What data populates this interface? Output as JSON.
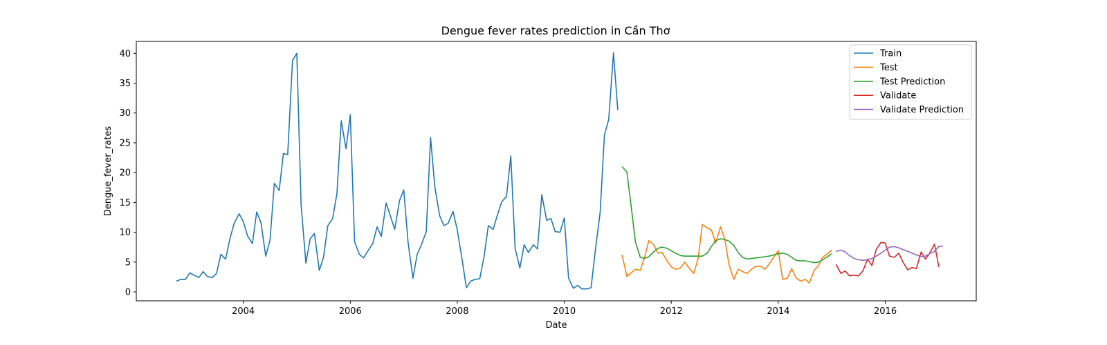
{
  "chart_data": {
    "type": "line",
    "title": "Dengue fever rates prediction in Cần Thơ",
    "xlabel": "Date",
    "ylabel": "Dengue_fever_rates",
    "xlim": [
      2002.0,
      2017.7
    ],
    "ylim": [
      -1.5,
      42.0
    ],
    "x_ticks": [
      2004,
      2006,
      2008,
      2010,
      2012,
      2014,
      2016
    ],
    "x_tick_labels": [
      "2004",
      "2006",
      "2008",
      "2010",
      "2012",
      "2014",
      "2016"
    ],
    "y_ticks": [
      0,
      5,
      10,
      15,
      20,
      25,
      30,
      35,
      40
    ],
    "y_tick_labels": [
      "0",
      "5",
      "10",
      "15",
      "20",
      "25",
      "30",
      "35",
      "40"
    ],
    "grid": false,
    "legend_position": "top-right",
    "series": [
      {
        "name": "Train",
        "color": "#1f77b4",
        "x": [
          2002.75,
          2002.83,
          2002.92,
          2003.0,
          2003.08,
          2003.17,
          2003.25,
          2003.33,
          2003.42,
          2003.5,
          2003.58,
          2003.67,
          2003.75,
          2003.83,
          2003.92,
          2004.0,
          2004.08,
          2004.17,
          2004.25,
          2004.33,
          2004.42,
          2004.5,
          2004.58,
          2004.67,
          2004.75,
          2004.83,
          2004.92,
          2005.0,
          2005.08,
          2005.17,
          2005.25,
          2005.33,
          2005.42,
          2005.5,
          2005.58,
          2005.67,
          2005.75,
          2005.83,
          2005.92,
          2006.0,
          2006.08,
          2006.17,
          2006.25,
          2006.33,
          2006.42,
          2006.5,
          2006.58,
          2006.67,
          2006.75,
          2006.83,
          2006.92,
          2007.0,
          2007.08,
          2007.17,
          2007.25,
          2007.33,
          2007.42,
          2007.5,
          2007.58,
          2007.67,
          2007.75,
          2007.83,
          2007.92,
          2008.0,
          2008.08,
          2008.17,
          2008.25,
          2008.33,
          2008.42,
          2008.5,
          2008.58,
          2008.67,
          2008.75,
          2008.83,
          2008.92,
          2009.0,
          2009.08,
          2009.17,
          2009.25,
          2009.33,
          2009.42,
          2009.5,
          2009.58,
          2009.67,
          2009.75,
          2009.83,
          2009.92,
          2010.0,
          2010.08,
          2010.17,
          2010.25,
          2010.33,
          2010.42,
          2010.5,
          2010.58,
          2010.67,
          2010.75,
          2010.83,
          2010.92,
          2011.0
        ],
        "values": [
          1.8,
          2.1,
          2.1,
          3.2,
          2.8,
          2.4,
          3.4,
          2.6,
          2.4,
          3.1,
          6.3,
          5.5,
          8.9,
          11.5,
          13.1,
          11.8,
          9.4,
          8.1,
          13.4,
          11.6,
          6.0,
          8.7,
          18.2,
          17.0,
          23.2,
          23.0,
          38.8,
          40.0,
          14.6,
          4.8,
          8.9,
          9.8,
          3.6,
          5.8,
          11.1,
          12.3,
          16.5,
          28.7,
          24.0,
          29.7,
          8.4,
          6.3,
          5.7,
          6.9,
          8.1,
          10.9,
          9.3,
          14.9,
          12.7,
          10.5,
          15.3,
          17.1,
          8.3,
          2.3,
          6.3,
          7.9,
          10.1,
          25.9,
          17.6,
          12.8,
          11.1,
          11.5,
          13.5,
          10.4,
          6.0,
          0.7,
          1.8,
          2.1,
          2.2,
          5.9,
          11.1,
          10.5,
          12.9,
          15.1,
          16.0,
          22.8,
          7.3,
          4.0,
          7.9,
          6.6,
          7.9,
          7.2,
          16.3,
          12.0,
          12.3,
          10.1,
          10.0,
          12.4,
          2.3,
          0.6,
          1.1,
          0.5,
          0.5,
          0.7,
          6.9,
          13.3,
          26.3,
          28.9,
          40.1,
          30.5
        ]
      },
      {
        "name": "Test",
        "color": "#ff7f0e",
        "x": [
          2011.08,
          2011.17,
          2011.25,
          2011.33,
          2011.42,
          2011.5,
          2011.58,
          2011.67,
          2011.75,
          2011.83,
          2011.92,
          2012.0,
          2012.08,
          2012.17,
          2012.25,
          2012.33,
          2012.42,
          2012.5,
          2012.58,
          2012.67,
          2012.75,
          2012.83,
          2012.92,
          2013.0,
          2013.08,
          2013.17,
          2013.25,
          2013.33,
          2013.42,
          2013.5,
          2013.58,
          2013.67,
          2013.75,
          2013.83,
          2013.92,
          2014.0,
          2014.08,
          2014.17,
          2014.25,
          2014.33,
          2014.42,
          2014.5,
          2014.58,
          2014.67,
          2014.75,
          2014.83,
          2014.92,
          2015.0
        ],
        "values": [
          6.2,
          2.6,
          3.2,
          3.8,
          3.6,
          5.8,
          8.6,
          7.9,
          6.5,
          6.6,
          5.2,
          4.2,
          3.8,
          4.0,
          5.0,
          4.0,
          3.1,
          5.5,
          11.3,
          10.7,
          10.4,
          8.2,
          10.9,
          8.8,
          4.5,
          2.1,
          3.8,
          3.4,
          3.1,
          3.8,
          4.3,
          4.3,
          3.8,
          4.7,
          5.9,
          6.9,
          2.1,
          2.3,
          3.9,
          2.4,
          1.8,
          2.1,
          1.5,
          3.6,
          4.4,
          5.8,
          6.4,
          7.0
        ]
      },
      {
        "name": "Test Prediction",
        "color": "#2ca02c",
        "x": [
          2011.08,
          2011.17,
          2011.25,
          2011.33,
          2011.42,
          2011.5,
          2011.58,
          2011.67,
          2011.75,
          2011.83,
          2011.92,
          2012.0,
          2012.08,
          2012.17,
          2012.25,
          2012.33,
          2012.42,
          2012.5,
          2012.58,
          2012.67,
          2012.75,
          2012.83,
          2012.92,
          2013.0,
          2013.08,
          2013.17,
          2013.25,
          2013.33,
          2013.42,
          2013.5,
          2013.58,
          2013.67,
          2013.75,
          2013.83,
          2013.92,
          2014.0,
          2014.08,
          2014.17,
          2014.25,
          2014.33,
          2014.42,
          2014.5,
          2014.58,
          2014.67,
          2014.75,
          2014.83,
          2014.92,
          2015.0
        ],
        "values": [
          21.0,
          20.1,
          14.3,
          8.4,
          5.8,
          5.6,
          5.9,
          6.7,
          7.3,
          7.5,
          7.3,
          6.9,
          6.5,
          6.1,
          6.0,
          6.0,
          6.0,
          6.0,
          6.0,
          6.5,
          7.6,
          8.6,
          8.9,
          8.8,
          8.5,
          7.8,
          6.6,
          5.8,
          5.5,
          5.6,
          5.7,
          5.8,
          5.9,
          6.0,
          6.2,
          6.4,
          6.5,
          6.3,
          5.8,
          5.3,
          5.2,
          5.2,
          5.1,
          4.9,
          5.0,
          5.4,
          5.9,
          6.4
        ]
      },
      {
        "name": "Validate",
        "color": "#d62728",
        "x": [
          2015.08,
          2015.17,
          2015.25,
          2015.33,
          2015.42,
          2015.5,
          2015.58,
          2015.67,
          2015.75,
          2015.83,
          2015.92,
          2016.0,
          2016.08,
          2016.17,
          2016.25,
          2016.33,
          2016.42,
          2016.5,
          2016.58,
          2016.67,
          2016.75,
          2016.83,
          2016.92,
          2017.0
        ],
        "values": [
          4.6,
          3.1,
          3.5,
          2.7,
          2.8,
          2.7,
          3.5,
          5.5,
          4.4,
          7.1,
          8.3,
          8.2,
          6.0,
          5.8,
          6.5,
          5.0,
          3.7,
          4.1,
          3.9,
          6.7,
          5.5,
          6.5,
          8.0,
          4.2
        ]
      },
      {
        "name": "Validate Prediction",
        "color": "#9467bd",
        "x": [
          2015.08,
          2015.17,
          2015.25,
          2015.33,
          2015.42,
          2015.5,
          2015.58,
          2015.67,
          2015.75,
          2015.83,
          2015.92,
          2016.0,
          2016.08,
          2016.17,
          2016.25,
          2016.33,
          2016.42,
          2016.5,
          2016.58,
          2016.67,
          2016.75,
          2016.83,
          2016.92,
          2017.0,
          2017.08
        ],
        "values": [
          6.8,
          7.0,
          6.7,
          6.1,
          5.6,
          5.4,
          5.3,
          5.4,
          5.6,
          6.0,
          6.5,
          7.0,
          7.5,
          7.6,
          7.4,
          7.1,
          6.8,
          6.5,
          6.2,
          5.9,
          6.0,
          6.4,
          6.8,
          7.6,
          7.7
        ]
      }
    ]
  }
}
